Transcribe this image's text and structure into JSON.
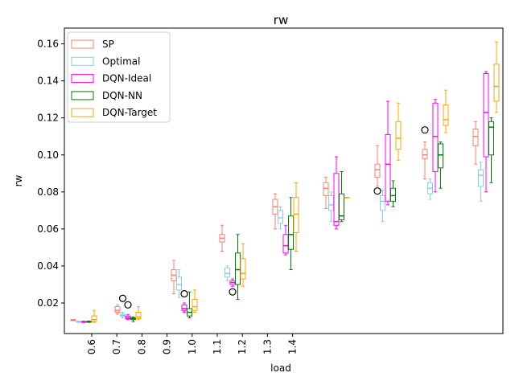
{
  "chart_data": {
    "type": "boxplot",
    "title": "rw",
    "xlabel": "load",
    "ylabel": "rw",
    "ylim": [
      0.0035,
      0.1685
    ],
    "yticks": [
      0.02,
      0.04,
      0.06,
      0.08,
      0.1,
      0.12,
      0.14,
      0.16
    ],
    "ytick_labels": [
      "0.02",
      "0.04",
      "0.06",
      "0.08",
      "0.10",
      "0.12",
      "0.14",
      "0.16"
    ],
    "xtick_labels": [
      "0.6",
      "0.7",
      "0.8",
      "0.9",
      "1.0",
      "1.1",
      "1.2",
      "1.3",
      "1.4"
    ],
    "legend_position": "upper-left",
    "series": [
      {
        "name": "SP",
        "color": "#FA8072",
        "boxes": [
          {
            "whislo": 0.0105,
            "q1": 0.0105,
            "med": 0.0108,
            "q3": 0.0111,
            "whishi": 0.0111,
            "fliers": []
          },
          {
            "whislo": 0.014,
            "q1": 0.015,
            "med": 0.016,
            "q3": 0.018,
            "whishi": 0.019,
            "fliers": []
          },
          {
            "whislo": 0.025,
            "q1": 0.032,
            "med": 0.035,
            "q3": 0.038,
            "whishi": 0.043,
            "fliers": []
          },
          {
            "whislo": 0.048,
            "q1": 0.053,
            "med": 0.055,
            "q3": 0.057,
            "whishi": 0.062,
            "fliers": []
          },
          {
            "whislo": 0.06,
            "q1": 0.068,
            "med": 0.072,
            "q3": 0.076,
            "whishi": 0.079,
            "fliers": []
          },
          {
            "whislo": 0.071,
            "q1": 0.078,
            "med": 0.082,
            "q3": 0.085,
            "whishi": 0.088,
            "fliers": []
          },
          {
            "whislo": 0.083,
            "q1": 0.088,
            "med": 0.092,
            "q3": 0.095,
            "whishi": 0.105,
            "fliers": [
              0.0805
            ]
          },
          {
            "whislo": 0.087,
            "q1": 0.098,
            "med": 0.1,
            "q3": 0.103,
            "whishi": 0.107,
            "fliers": [
              0.1135
            ]
          },
          {
            "whislo": 0.095,
            "q1": 0.105,
            "med": 0.11,
            "q3": 0.114,
            "whishi": 0.118,
            "fliers": []
          }
        ]
      },
      {
        "name": "Optimal",
        "color": "#87CEEB",
        "boxes": [
          {
            "whislo": 0.0095,
            "q1": 0.0097,
            "med": 0.0099,
            "q3": 0.0101,
            "whishi": 0.0103,
            "fliers": []
          },
          {
            "whislo": 0.012,
            "q1": 0.0128,
            "med": 0.0133,
            "q3": 0.014,
            "whishi": 0.015,
            "fliers": [
              0.0225
            ]
          },
          {
            "whislo": 0.023,
            "q1": 0.027,
            "med": 0.03,
            "q3": 0.034,
            "whishi": 0.038,
            "fliers": []
          },
          {
            "whislo": 0.032,
            "q1": 0.034,
            "med": 0.036,
            "q3": 0.039,
            "whishi": 0.04,
            "fliers": []
          },
          {
            "whislo": 0.06,
            "q1": 0.063,
            "med": 0.066,
            "q3": 0.07,
            "whishi": 0.072,
            "fliers": []
          },
          {
            "whislo": 0.064,
            "q1": 0.07,
            "med": 0.073,
            "q3": 0.078,
            "whishi": 0.08,
            "fliers": []
          },
          {
            "whislo": 0.064,
            "q1": 0.07,
            "med": 0.075,
            "q3": 0.078,
            "whishi": 0.081,
            "fliers": []
          },
          {
            "whislo": 0.076,
            "q1": 0.079,
            "med": 0.082,
            "q3": 0.085,
            "whishi": 0.087,
            "fliers": []
          },
          {
            "whislo": 0.075,
            "q1": 0.083,
            "med": 0.089,
            "q3": 0.092,
            "whishi": 0.096,
            "fliers": []
          }
        ]
      },
      {
        "name": "DQN-Ideal",
        "color": "#FF00FF",
        "boxes": [
          {
            "whislo": 0.0094,
            "q1": 0.0096,
            "med": 0.0098,
            "q3": 0.01,
            "whishi": 0.0102,
            "fliers": []
          },
          {
            "whislo": 0.011,
            "q1": 0.0115,
            "med": 0.0122,
            "q3": 0.013,
            "whishi": 0.0138,
            "fliers": [
              0.019
            ]
          },
          {
            "whislo": 0.015,
            "q1": 0.016,
            "med": 0.017,
            "q3": 0.019,
            "whishi": 0.02,
            "fliers": [
              0.025
            ]
          },
          {
            "whislo": 0.029,
            "q1": 0.03,
            "med": 0.031,
            "q3": 0.032,
            "whishi": 0.033,
            "fliers": [
              0.026
            ]
          },
          {
            "whislo": 0.046,
            "q1": 0.047,
            "med": 0.051,
            "q3": 0.057,
            "whishi": 0.062,
            "fliers": []
          },
          {
            "whislo": 0.06,
            "q1": 0.062,
            "med": 0.064,
            "q3": 0.09,
            "whishi": 0.099,
            "fliers": []
          },
          {
            "whislo": 0.073,
            "q1": 0.075,
            "med": 0.095,
            "q3": 0.111,
            "whishi": 0.129,
            "fliers": []
          },
          {
            "whislo": 0.08,
            "q1": 0.091,
            "med": 0.11,
            "q3": 0.128,
            "whishi": 0.13,
            "fliers": []
          },
          {
            "whislo": 0.08,
            "q1": 0.099,
            "med": 0.123,
            "q3": 0.144,
            "whishi": 0.145,
            "fliers": []
          }
        ]
      },
      {
        "name": "DQN-NN",
        "color": "#008000",
        "boxes": [
          {
            "whislo": 0.0095,
            "q1": 0.0097,
            "med": 0.0099,
            "q3": 0.0101,
            "whishi": 0.0103,
            "fliers": []
          },
          {
            "whislo": 0.01,
            "q1": 0.011,
            "med": 0.0115,
            "q3": 0.012,
            "whishi": 0.0125,
            "fliers": []
          },
          {
            "whislo": 0.012,
            "q1": 0.013,
            "med": 0.015,
            "q3": 0.017,
            "whishi": 0.026,
            "fliers": []
          },
          {
            "whislo": 0.022,
            "q1": 0.03,
            "med": 0.038,
            "q3": 0.047,
            "whishi": 0.057,
            "fliers": []
          },
          {
            "whislo": 0.038,
            "q1": 0.049,
            "med": 0.057,
            "q3": 0.067,
            "whishi": 0.077,
            "fliers": []
          },
          {
            "whislo": 0.064,
            "q1": 0.065,
            "med": 0.067,
            "q3": 0.079,
            "whishi": 0.091,
            "fliers": []
          },
          {
            "whislo": 0.072,
            "q1": 0.075,
            "med": 0.078,
            "q3": 0.082,
            "whishi": 0.086,
            "fliers": []
          },
          {
            "whislo": 0.082,
            "q1": 0.093,
            "med": 0.1,
            "q3": 0.106,
            "whishi": 0.107,
            "fliers": []
          },
          {
            "whislo": 0.085,
            "q1": 0.1,
            "med": 0.115,
            "q3": 0.118,
            "whishi": 0.12,
            "fliers": []
          }
        ]
      },
      {
        "name": "DQN-Target",
        "color": "#FFA500",
        "boxes": [
          {
            "whislo": 0.0095,
            "q1": 0.01,
            "med": 0.011,
            "q3": 0.013,
            "whishi": 0.016,
            "fliers": []
          },
          {
            "whislo": 0.011,
            "q1": 0.0115,
            "med": 0.0125,
            "q3": 0.015,
            "whishi": 0.018,
            "fliers": []
          },
          {
            "whislo": 0.015,
            "q1": 0.016,
            "med": 0.018,
            "q3": 0.022,
            "whishi": 0.027,
            "fliers": []
          },
          {
            "whislo": 0.029,
            "q1": 0.033,
            "med": 0.036,
            "q3": 0.044,
            "whishi": 0.052,
            "fliers": []
          },
          {
            "whislo": 0.048,
            "q1": 0.058,
            "med": 0.068,
            "q3": 0.077,
            "whishi": 0.085,
            "fliers": []
          },
          {
            "whislo": 0.077,
            "q1": 0.077,
            "med": 0.077,
            "q3": 0.077,
            "whishi": 0.077,
            "fliers": []
          },
          {
            "whislo": 0.097,
            "q1": 0.103,
            "med": 0.109,
            "q3": 0.118,
            "whishi": 0.128,
            "fliers": []
          },
          {
            "whislo": 0.112,
            "q1": 0.116,
            "med": 0.119,
            "q3": 0.127,
            "whishi": 0.135,
            "fliers": []
          },
          {
            "whislo": 0.123,
            "q1": 0.129,
            "med": 0.137,
            "q3": 0.149,
            "whishi": 0.161,
            "fliers": []
          }
        ]
      }
    ]
  }
}
